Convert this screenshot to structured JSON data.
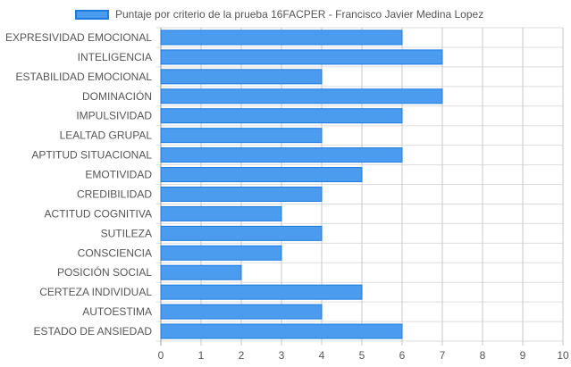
{
  "colors": {
    "bar_fill": "#4b9bef",
    "bar_stroke": "#1d7be0",
    "grid": "#dddddd",
    "grid_strong": "#c8c8c8",
    "text": "#555555"
  },
  "chart_data": {
    "type": "bar",
    "orientation": "horizontal",
    "categories": [
      "EXPRESIVIDAD EMOCIONAL",
      "INTELIGENCIA",
      "ESTABILIDAD EMOCIONAL",
      "DOMINACIÓN",
      "IMPULSIVIDAD",
      "LEALTAD GRUPAL",
      "APTITUD SITUACIONAL",
      "EMOTIVIDAD",
      "CREDIBILIDAD",
      "ACTITUD COGNITIVA",
      "SUTILEZA",
      "CONSCIENCIA",
      "POSICIÓN SOCIAL",
      "CERTEZA INDIVIDUAL",
      "AUTOESTIMA",
      "ESTADO DE ANSIEDAD"
    ],
    "series": [
      {
        "name": "Puntaje por criterio de la prueba 16FACPER - Francisco Javier Medina Lopez",
        "values": [
          6,
          7,
          4,
          7,
          6,
          4,
          6,
          5,
          4,
          3,
          4,
          3,
          2,
          5,
          4,
          6
        ]
      }
    ],
    "xlim": [
      0,
      10
    ],
    "xticks": [
      "0",
      "1",
      "2",
      "3",
      "4",
      "5",
      "6",
      "7",
      "8",
      "9",
      "10"
    ],
    "grid": true,
    "legend_position": "top-center",
    "title": "",
    "xlabel": "",
    "ylabel": ""
  }
}
